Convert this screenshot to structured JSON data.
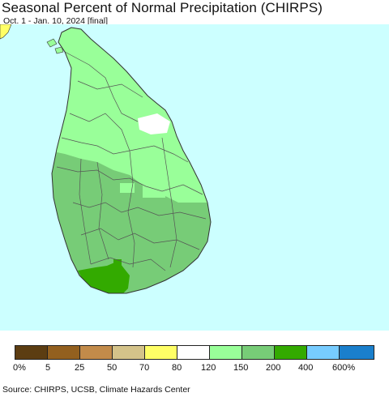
{
  "header": {
    "title": "Seasonal Percent of Normal Precipitation (CHIRPS)",
    "subtitle": "Oct. 1 - Jan. 10, 2024 [final]"
  },
  "map": {
    "region": "Sri Lanka",
    "ocean_color": "#ccffff",
    "outline_color": "#333333",
    "district_line_color": "#555555"
  },
  "legend": {
    "colors": [
      "#5c3d12",
      "#93601f",
      "#c28b4a",
      "#d4c38a",
      "#ffff66",
      "#ffffff",
      "#99ff99",
      "#77cc77",
      "#33aa00",
      "#77ccff",
      "#1a7fcc"
    ],
    "labels": [
      "0%",
      "5",
      "25",
      "50",
      "70",
      "80",
      "120",
      "150",
      "200",
      "400",
      "600%"
    ]
  },
  "footer": {
    "source": "Source: CHIRPS, UCSB, Climate Hazards Center"
  }
}
